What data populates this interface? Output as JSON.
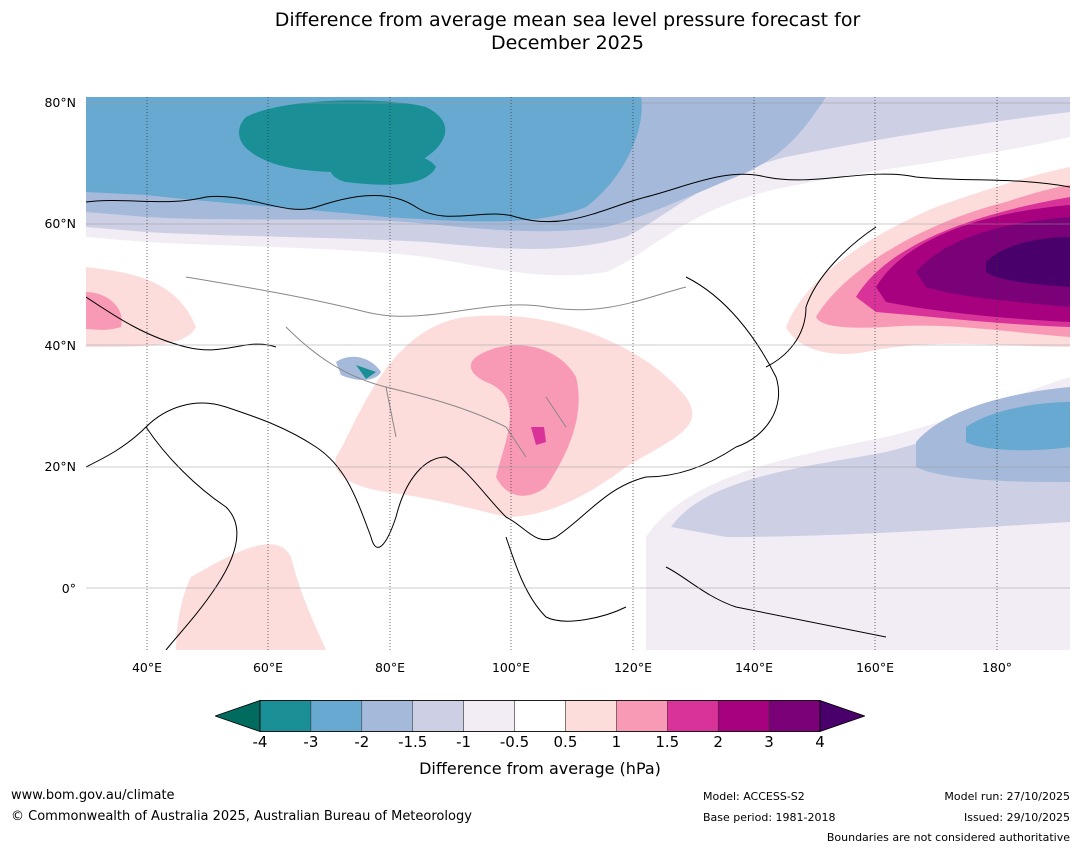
{
  "title_line1": "Difference from average mean sea level pressure forecast for",
  "title_line2": "December 2025",
  "map": {
    "lat_labels": [
      "80°N",
      "60°N",
      "40°N",
      "20°N",
      "0°"
    ],
    "lon_labels": [
      "40°E",
      "60°E",
      "80°E",
      "100°E",
      "120°E",
      "140°E",
      "160°E",
      "180°"
    ],
    "region": "Asia and western Pacific",
    "extent": {
      "lon_min": 30,
      "lon_max": 192,
      "lat_min": -10,
      "lat_max": 81
    }
  },
  "colorbar": {
    "tick_labels": [
      "-4",
      "-3",
      "-2",
      "-1.5",
      "-1",
      "-0.5",
      "0.5",
      "1",
      "1.5",
      "2",
      "3",
      "4"
    ],
    "colors": [
      "#006b5e",
      "#1a8f96",
      "#67a9d0",
      "#a5b9da",
      "#cdd0e5",
      "#f2ecf5",
      "#ffffff",
      "#fddcdc",
      "#f89ab5",
      "#d9339a",
      "#a8017f",
      "#7a0177",
      "#49006a"
    ],
    "label": "Difference from average (hPa)"
  },
  "footer": {
    "url": "www.bom.gov.au/climate",
    "copyright": "© Commonwealth of Australia 2025, Australian Bureau of Meteorology",
    "model": "Model: ACCESS-S2",
    "base_period": "Base period: 1981-2018",
    "model_run": "Model run: 27/10/2025",
    "issued": "Issued: 29/10/2025",
    "disclaimer": "Boundaries are not considered authoritative"
  }
}
